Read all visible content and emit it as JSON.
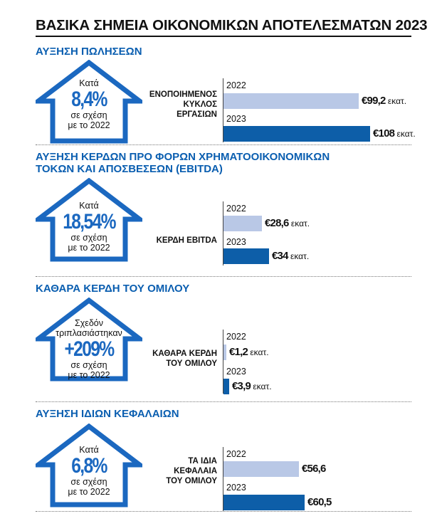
{
  "title": "ΒΑΣΙΚΑ ΣΗΜΕΙΑ ΟΙΚΟΝΟΜΙΚΩΝ ΑΠΟΤΕΛΕΣΜΑΤΩΝ 2023",
  "colors": {
    "accent": "#0a5eb0",
    "bar_2022": "#b9c8e6",
    "bar_2023": "#0d5ea8"
  },
  "sections": [
    {
      "heading": "ΑΥΞΗΣΗ ΠΩΛΗΣΕΩΝ",
      "heading2": "",
      "pre": "Κατά",
      "pct": "8,4%",
      "post1": "σε σχέση",
      "post2": "με το 2022",
      "metric_lines": [
        "ΕΝΟΠΟΙΗΜΕΝΟΣ",
        "ΚΥΚΛΟΣ",
        "ΕΡΓΑΣΙΩΝ"
      ],
      "year1": "2022",
      "year2": "2023",
      "label1": "€99,2",
      "label2": "€108",
      "unit1": "εκατ.",
      "unit2": "εκατ."
    },
    {
      "heading": "ΑΥΞΗΣΗ ΚΕΡΔΩΝ ΠΡΟ ΦΟΡΩΝ ΧΡΗΜΑΤΟΟΙΚΟΝΟΜΙΚΩΝ",
      "heading2": "ΤΟΚΩΝ ΚΑΙ ΑΠΟΣΒΕΣΕΩΝ (EBITDA)",
      "pre": "Κατά",
      "pct": "18,54%",
      "post1": "σε σχέση",
      "post2": "με το 2022",
      "metric_lines": [
        "ΚΕΡΔΗ EBITDA"
      ],
      "year1": "2022",
      "year2": "2023",
      "label1": "€28,6",
      "label2": "€34",
      "unit1": "εκατ.",
      "unit2": "εκατ."
    },
    {
      "heading": "ΚΑΘΑΡΑ ΚΕΡΔΗ ΤΟΥ ΟΜΙΛΟΥ",
      "heading2": "",
      "pre": "Σχεδόν τριπλασιάστηκαν",
      "pct": "+209%",
      "post1": "σε σχέση",
      "post2": "με το 2022",
      "metric_lines": [
        "ΚΑΘΑΡΑ ΚΕΡΔΗ",
        "ΤΟΥ ΟΜΙΛΟΥ"
      ],
      "year1": "2022",
      "year2": "2023",
      "label1": "€1,2",
      "label2": "€3,9",
      "unit1": "εκατ.",
      "unit2": "εκατ."
    },
    {
      "heading": "ΑΥΞΗΣΗ ΙΔΙΩΝ ΚΕΦΑΛΑΙΩΝ",
      "heading2": "",
      "pre": "Κατά",
      "pct": "6,8%",
      "post1": "σε σχέση",
      "post2": "με το 2022",
      "metric_lines": [
        "ΤΑ ΙΔΙΑ",
        "ΚΕΦΑΛΑΙΑ",
        "ΤΟΥ ΟΜΙΛΟΥ"
      ],
      "year1": "2022",
      "year2": "2023",
      "label1": "€56,6",
      "label2": "€60,5",
      "unit1": "",
      "unit2": ""
    }
  ],
  "chart_data": [
    {
      "type": "bar",
      "title": "ΑΥΞΗΣΗ ΠΩΛΗΣΕΩΝ",
      "categories": [
        "2022",
        "2023"
      ],
      "values": [
        99.2,
        108
      ],
      "unit": "εκατ."
    },
    {
      "type": "bar",
      "title": "ΑΥΞΗΣΗ ΚΕΡΔΩΝ ΠΡΟ ΦΟΡΩΝ ΧΡΗΜΑΤΟΟΙΚΟΝΟΜΙΚΩΝ ΤΟΚΩΝ ΚΑΙ ΑΠΟΣΒΕΣΕΩΝ (EBITDA)",
      "categories": [
        "2022",
        "2023"
      ],
      "values": [
        28.6,
        34
      ],
      "unit": "εκατ."
    },
    {
      "type": "bar",
      "title": "ΚΑΘΑΡΑ ΚΕΡΔΗ ΤΟΥ ΟΜΙΛΟΥ",
      "categories": [
        "2022",
        "2023"
      ],
      "values": [
        1.2,
        3.9
      ],
      "unit": "εκατ."
    },
    {
      "type": "bar",
      "title": "ΑΥΞΗΣΗ ΙΔΙΩΝ ΚΕΦΑΛΑΙΩΝ",
      "categories": [
        "2022",
        "2023"
      ],
      "values": [
        56.6,
        60.5
      ]
    }
  ]
}
